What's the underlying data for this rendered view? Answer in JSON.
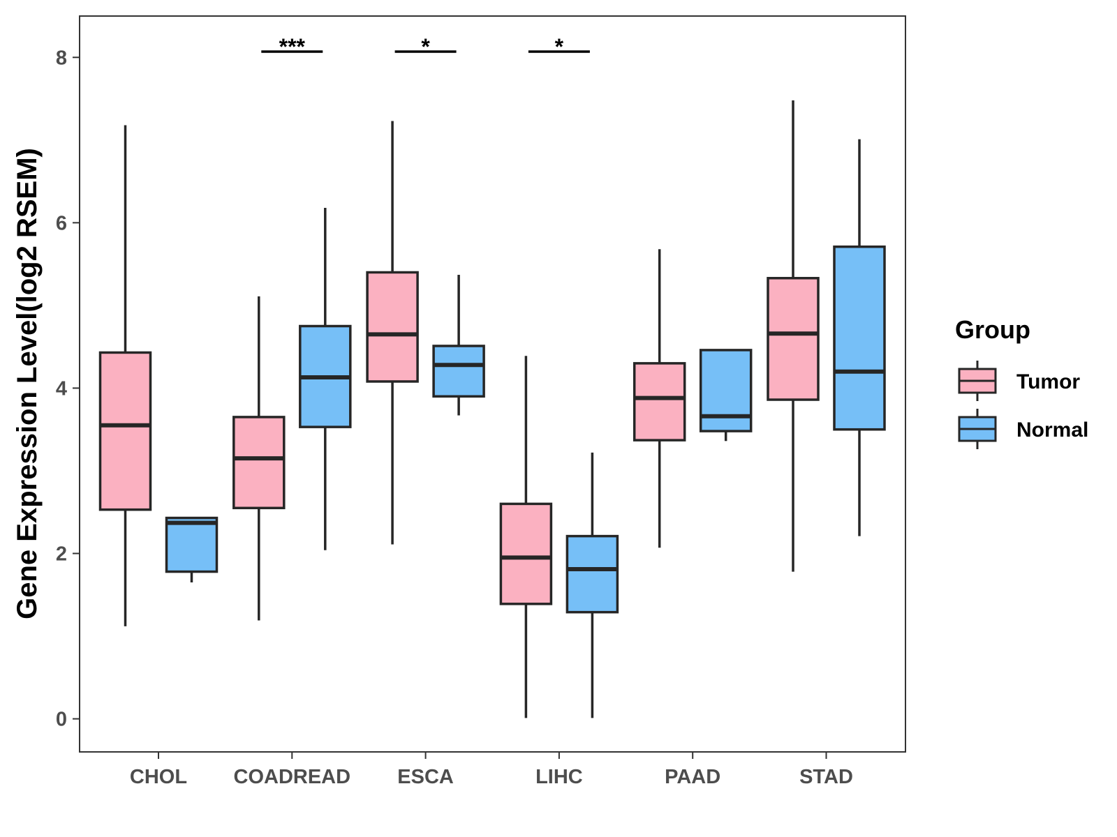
{
  "chart_data": {
    "type": "boxplot",
    "title": "",
    "xlabel": "",
    "ylabel": "Gene Expression Level(log2 RSEM)",
    "ylim": [
      -0.4,
      8.5
    ],
    "yticks": [
      0,
      2,
      4,
      6,
      8
    ],
    "categories": [
      "CHOL",
      "COADREAD",
      "ESCA",
      "LIHC",
      "PAAD",
      "STAD"
    ],
    "legend": {
      "title": "Group",
      "position": "right",
      "entries": [
        {
          "name": "Tumor",
          "color": "#fbb1c1"
        },
        {
          "name": "Normal",
          "color": "#76bff7"
        }
      ]
    },
    "series": [
      {
        "name": "Tumor",
        "color": "#fbb1c1",
        "boxes": [
          {
            "min": 1.12,
            "q1": 2.53,
            "median": 3.55,
            "q3": 4.43,
            "max": 7.18
          },
          {
            "min": 1.19,
            "q1": 2.55,
            "median": 3.15,
            "q3": 3.65,
            "max": 5.11
          },
          {
            "min": 2.11,
            "q1": 4.08,
            "median": 4.65,
            "q3": 5.4,
            "max": 7.23
          },
          {
            "min": 0.01,
            "q1": 1.39,
            "median": 1.95,
            "q3": 2.6,
            "max": 4.39
          },
          {
            "min": 2.07,
            "q1": 3.37,
            "median": 3.88,
            "q3": 4.3,
            "max": 5.68
          },
          {
            "min": 1.78,
            "q1": 3.86,
            "median": 4.66,
            "q3": 5.33,
            "max": 7.48
          }
        ]
      },
      {
        "name": "Normal",
        "color": "#76bff7",
        "boxes": [
          {
            "min": 1.65,
            "q1": 1.78,
            "median": 2.37,
            "q3": 2.43,
            "max": 2.43
          },
          {
            "min": 2.04,
            "q1": 3.53,
            "median": 4.13,
            "q3": 4.75,
            "max": 6.18
          },
          {
            "min": 3.67,
            "q1": 3.9,
            "median": 4.28,
            "q3": 4.51,
            "max": 5.37
          },
          {
            "min": 0.01,
            "q1": 1.29,
            "median": 1.81,
            "q3": 2.21,
            "max": 3.22
          },
          {
            "min": 3.36,
            "q1": 3.48,
            "median": 3.66,
            "q3": 4.46,
            "max": 4.46
          },
          {
            "min": 2.21,
            "q1": 3.5,
            "median": 4.2,
            "q3": 5.71,
            "max": 7.01
          }
        ]
      }
    ],
    "significance": [
      {
        "category": "COADREAD",
        "label": "***",
        "y": 8.07
      },
      {
        "category": "ESCA",
        "label": "*",
        "y": 8.07
      },
      {
        "category": "LIHC",
        "label": "*",
        "y": 8.07
      }
    ]
  }
}
